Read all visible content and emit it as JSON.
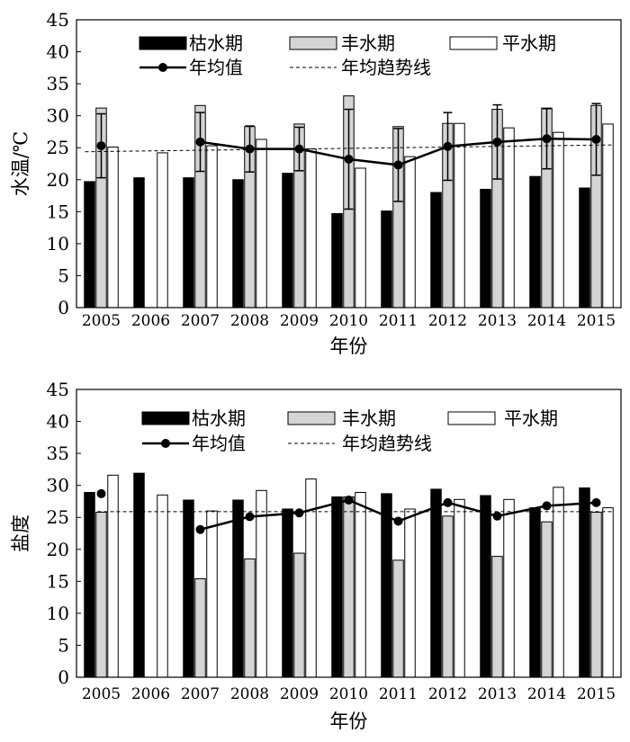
{
  "chart_data": [
    {
      "type": "bar",
      "ylabel": "水温/℃",
      "xlabel": "年份",
      "ylim": [
        0,
        45
      ],
      "yticks": [
        0,
        5,
        10,
        15,
        20,
        25,
        30,
        35,
        40,
        45
      ],
      "grid": false,
      "legend_position": "top",
      "categories": [
        "2005",
        "2006",
        "2007",
        "2008",
        "2009",
        "2010",
        "2011",
        "2012",
        "2013",
        "2014",
        "2015"
      ],
      "series": [
        {
          "name": "枯水期",
          "kind": "bar",
          "color": "#000000",
          "values": [
            19.7,
            20.3,
            20.3,
            20.0,
            21.0,
            14.7,
            15.1,
            18.0,
            18.5,
            20.5,
            18.7
          ]
        },
        {
          "name": "丰水期",
          "kind": "bar",
          "color": "#d4d4d4",
          "values": [
            31.2,
            null,
            31.6,
            28.3,
            28.7,
            33.1,
            28.3,
            28.8,
            31.0,
            31.2,
            31.6
          ]
        },
        {
          "name": "平水期",
          "kind": "bar",
          "color": "#ffffff",
          "values": [
            25.1,
            24.2,
            25.3,
            26.3,
            24.8,
            21.8,
            23.6,
            28.8,
            28.1,
            27.4,
            28.7
          ]
        },
        {
          "name": "年均值",
          "kind": "line",
          "color": "#000000",
          "values": [
            25.3,
            null,
            25.9,
            24.8,
            24.8,
            23.2,
            22.3,
            25.2,
            25.9,
            26.4,
            26.3
          ],
          "error": [
            5.0,
            null,
            4.6,
            3.6,
            3.4,
            7.8,
            5.7,
            5.3,
            5.8,
            4.7,
            5.6
          ]
        },
        {
          "name": "年均趋势线",
          "kind": "trend",
          "color": "#000000",
          "values": [
            24.4,
            24.5,
            24.6,
            24.7,
            24.8,
            24.9,
            25.0,
            25.1,
            25.2,
            25.3,
            25.4
          ]
        }
      ]
    },
    {
      "type": "bar",
      "ylabel": "盐度",
      "xlabel": "年份",
      "ylim": [
        0,
        45
      ],
      "yticks": [
        0,
        5,
        10,
        15,
        20,
        25,
        30,
        35,
        40,
        45
      ],
      "grid": false,
      "legend_position": "top",
      "categories": [
        "2005",
        "2006",
        "2007",
        "2008",
        "2009",
        "2010",
        "2011",
        "2012",
        "2013",
        "2014",
        "2015"
      ],
      "series": [
        {
          "name": "枯水期",
          "kind": "bar",
          "color": "#000000",
          "values": [
            28.9,
            31.9,
            27.7,
            27.7,
            26.3,
            28.2,
            28.7,
            29.4,
            28.4,
            26.5,
            29.6
          ]
        },
        {
          "name": "丰水期",
          "kind": "bar",
          "color": "#d4d4d4",
          "values": [
            25.8,
            null,
            15.4,
            18.5,
            19.4,
            28.2,
            18.3,
            25.2,
            18.9,
            24.3,
            25.8
          ]
        },
        {
          "name": "平水期",
          "kind": "bar",
          "color": "#ffffff",
          "values": [
            31.6,
            28.5,
            26.0,
            29.2,
            31.0,
            28.9,
            26.3,
            27.8,
            27.8,
            29.7,
            26.5
          ]
        },
        {
          "name": "年均值",
          "kind": "line",
          "color": "#000000",
          "values": [
            28.7,
            null,
            23.1,
            25.1,
            25.7,
            27.7,
            24.4,
            27.3,
            25.2,
            26.8,
            27.3
          ]
        },
        {
          "name": "年均趋势线",
          "kind": "trend",
          "color": "#000000",
          "values": [
            25.9,
            25.9,
            25.9,
            25.9,
            25.9,
            25.9,
            25.9,
            25.9,
            25.9,
            25.9,
            25.9
          ]
        }
      ]
    }
  ]
}
